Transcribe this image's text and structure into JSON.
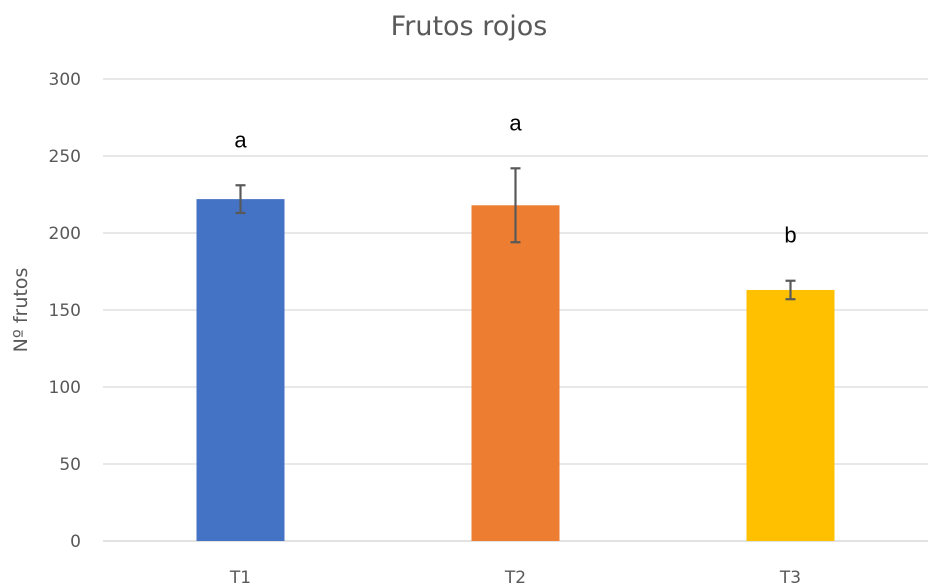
{
  "chart_data": {
    "type": "bar",
    "title": "Frutos rojos",
    "xlabel": "",
    "ylabel": "Nº frutos",
    "categories": [
      "T1",
      "T2",
      "T3"
    ],
    "values": [
      222,
      218,
      163
    ],
    "error": [
      9,
      24,
      6
    ],
    "significance_labels": [
      "a",
      "a",
      "b"
    ],
    "colors": [
      "#4472c4",
      "#ed7d31",
      "#ffc000"
    ],
    "ylim": [
      0,
      300
    ],
    "yticks": [
      "0",
      "50",
      "100",
      "150",
      "200",
      "250",
      "300"
    ],
    "grid": true,
    "legend": "none"
  }
}
